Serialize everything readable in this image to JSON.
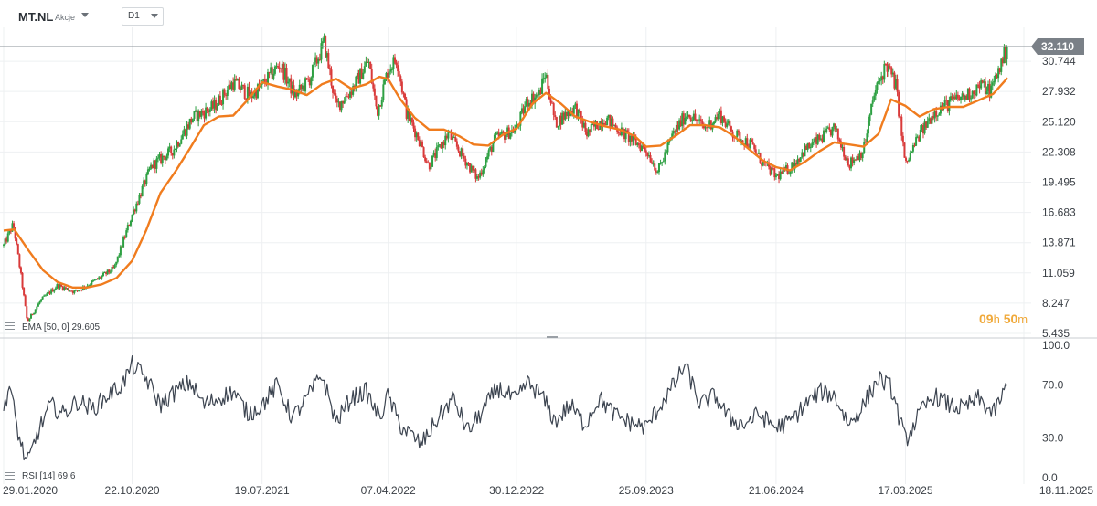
{
  "header": {
    "symbol": "MT.NL",
    "type": "Akcje",
    "timeframe": "D1"
  },
  "countdown": {
    "hours": "09",
    "h_unit": "h",
    "minutes": "50",
    "m_unit": "m"
  },
  "colors": {
    "ema": "#f07c1e",
    "up": "#2ea043",
    "down": "#d93a3a",
    "rsi": "#3c4450",
    "current_price_bg": "#7a8087"
  },
  "chart_data": [
    {
      "type": "candlestick",
      "panel": "price",
      "y_ticks": [
        "32.110",
        "30.744",
        "27.932",
        "25.120",
        "22.308",
        "19.495",
        "16.683",
        "13.871",
        "11.059",
        "8.247",
        "5.435"
      ],
      "ylim": [
        5.435,
        33.3
      ],
      "current_price": "32.110",
      "x_ticks": [
        "29.01.2020",
        "22.10.2020",
        "19.07.2021",
        "07.04.2022",
        "30.12.2022",
        "25.09.2023",
        "21.06.2024",
        "17.03.2025",
        "18.11.2025"
      ],
      "close_path": [
        [
          "2020-01-29",
          13.6
        ],
        [
          "2020-02-18",
          15.6
        ],
        [
          "2020-03-06",
          10.5
        ],
        [
          "2020-03-18",
          6.5
        ],
        [
          "2020-04-15",
          8.5
        ],
        [
          "2020-05-20",
          9.9
        ],
        [
          "2020-06-25",
          9.3
        ],
        [
          "2020-08-05",
          10.3
        ],
        [
          "2020-09-15",
          11.5
        ],
        [
          "2020-10-22",
          16.5
        ],
        [
          "2020-12-01",
          21.0
        ],
        [
          "2021-01-15",
          22.5
        ],
        [
          "2021-02-25",
          25.5
        ],
        [
          "2021-04-10",
          26.5
        ],
        [
          "2021-05-20",
          28.8
        ],
        [
          "2021-06-25",
          27.5
        ],
        [
          "2021-07-19",
          28.5
        ],
        [
          "2021-08-25",
          30.5
        ],
        [
          "2021-09-25",
          27.5
        ],
        [
          "2021-10-25",
          29.0
        ],
        [
          "2021-11-25",
          32.5
        ],
        [
          "2021-12-20",
          26.5
        ],
        [
          "2022-01-20",
          28.0
        ],
        [
          "2022-02-25",
          30.8
        ],
        [
          "2022-03-15",
          26.0
        ],
        [
          "2022-04-07",
          30.0
        ],
        [
          "2022-04-25",
          31.0
        ],
        [
          "2022-05-15",
          26.0
        ],
        [
          "2022-06-10",
          23.5
        ],
        [
          "2022-06-30",
          21.0
        ],
        [
          "2022-08-10",
          24.0
        ],
        [
          "2022-09-15",
          21.5
        ],
        [
          "2022-10-10",
          19.8
        ],
        [
          "2022-11-15",
          23.5
        ],
        [
          "2022-12-30",
          24.5
        ],
        [
          "2023-01-20",
          27.0
        ],
        [
          "2023-02-15",
          27.7
        ],
        [
          "2023-02-28",
          29.7
        ],
        [
          "2023-03-20",
          25.0
        ],
        [
          "2023-04-30",
          26.5
        ],
        [
          "2023-05-25",
          24.0
        ],
        [
          "2023-07-01",
          25.5
        ],
        [
          "2023-08-15",
          23.8
        ],
        [
          "2023-09-25",
          22.5
        ],
        [
          "2023-10-20",
          20.5
        ],
        [
          "2023-11-20",
          24.0
        ],
        [
          "2023-12-20",
          26.0
        ],
        [
          "2024-01-25",
          24.5
        ],
        [
          "2024-02-25",
          25.8
        ],
        [
          "2024-03-25",
          24.0
        ],
        [
          "2024-04-30",
          23.0
        ],
        [
          "2024-05-20",
          21.5
        ],
        [
          "2024-06-21",
          20.0
        ],
        [
          "2024-07-20",
          20.8
        ],
        [
          "2024-08-20",
          22.5
        ],
        [
          "2024-09-20",
          23.5
        ],
        [
          "2024-10-20",
          24.5
        ],
        [
          "2024-11-20",
          21.2
        ],
        [
          "2024-12-20",
          22.5
        ],
        [
          "2025-01-10",
          27.5
        ],
        [
          "2025-02-05",
          30.5
        ],
        [
          "2025-02-25",
          28.5
        ],
        [
          "2025-03-17",
          21.0
        ],
        [
          "2025-04-10",
          23.5
        ],
        [
          "2025-05-15",
          26.0
        ],
        [
          "2025-06-20",
          27.0
        ],
        [
          "2025-07-20",
          27.5
        ],
        [
          "2025-08-20",
          28.5
        ],
        [
          "2025-09-10",
          28.0
        ],
        [
          "2025-10-15",
          32.1
        ]
      ],
      "ema_path": [
        [
          "2020-01-29",
          15.0
        ],
        [
          "2020-02-20",
          15.1
        ],
        [
          "2020-03-20",
          13.2
        ],
        [
          "2020-04-20",
          11.3
        ],
        [
          "2020-05-20",
          10.2
        ],
        [
          "2020-06-20",
          9.7
        ],
        [
          "2020-07-20",
          9.7
        ],
        [
          "2020-08-20",
          10.0
        ],
        [
          "2020-09-20",
          10.6
        ],
        [
          "2020-10-22",
          12.2
        ],
        [
          "2020-11-20",
          15.0
        ],
        [
          "2020-12-20",
          18.5
        ],
        [
          "2021-01-20",
          20.5
        ],
        [
          "2021-02-20",
          22.7
        ],
        [
          "2021-03-20",
          24.8
        ],
        [
          "2021-04-20",
          25.6
        ],
        [
          "2021-05-20",
          25.7
        ],
        [
          "2021-06-20",
          27.2
        ],
        [
          "2021-07-19",
          28.8
        ],
        [
          "2021-08-20",
          28.4
        ],
        [
          "2021-09-20",
          28.1
        ],
        [
          "2021-10-20",
          27.6
        ],
        [
          "2021-11-20",
          28.6
        ],
        [
          "2021-12-20",
          29.1
        ],
        [
          "2022-01-20",
          28.2
        ],
        [
          "2022-02-20",
          28.6
        ],
        [
          "2022-03-20",
          29.3
        ],
        [
          "2022-04-07",
          29.1
        ],
        [
          "2022-05-01",
          27.3
        ],
        [
          "2022-06-01",
          25.5
        ],
        [
          "2022-07-01",
          24.4
        ],
        [
          "2022-08-01",
          24.4
        ],
        [
          "2022-09-01",
          23.8
        ],
        [
          "2022-10-01",
          23.0
        ],
        [
          "2022-11-01",
          22.9
        ],
        [
          "2022-12-01",
          23.9
        ],
        [
          "2022-12-30",
          24.5
        ],
        [
          "2023-02-01",
          26.8
        ],
        [
          "2023-03-01",
          27.8
        ],
        [
          "2023-04-01",
          26.8
        ],
        [
          "2023-05-01",
          25.6
        ],
        [
          "2023-06-01",
          25.1
        ],
        [
          "2023-07-01",
          24.7
        ],
        [
          "2023-08-01",
          24.4
        ],
        [
          "2023-09-01",
          23.8
        ],
        [
          "2023-09-25",
          22.8
        ],
        [
          "2023-10-25",
          22.9
        ],
        [
          "2023-11-25",
          23.8
        ],
        [
          "2023-12-25",
          24.8
        ],
        [
          "2024-01-25",
          24.8
        ],
        [
          "2024-02-25",
          24.6
        ],
        [
          "2024-03-25",
          23.8
        ],
        [
          "2024-04-25",
          22.6
        ],
        [
          "2024-05-25",
          21.5
        ],
        [
          "2024-06-21",
          20.9
        ],
        [
          "2024-07-20",
          20.6
        ],
        [
          "2024-08-20",
          21.4
        ],
        [
          "2024-09-20",
          22.4
        ],
        [
          "2024-10-20",
          23.2
        ],
        [
          "2024-11-20",
          23.0
        ],
        [
          "2024-12-20",
          22.8
        ],
        [
          "2025-01-20",
          24.0
        ],
        [
          "2025-02-15",
          27.2
        ],
        [
          "2025-03-17",
          26.6
        ],
        [
          "2025-04-15",
          25.6
        ],
        [
          "2025-05-15",
          26.3
        ],
        [
          "2025-06-15",
          26.5
        ],
        [
          "2025-07-15",
          26.5
        ],
        [
          "2025-08-15",
          27.1
        ],
        [
          "2025-09-15",
          27.7
        ],
        [
          "2025-10-15",
          29.2
        ]
      ],
      "indicator_legend": {
        "label": "EMA [50, 0]",
        "value": "29.605"
      }
    },
    {
      "type": "line",
      "panel": "rsi",
      "y_ticks": [
        "100.0",
        "70.0",
        "30.0",
        "0.0"
      ],
      "ylim": [
        0,
        100
      ],
      "indicator_legend": {
        "label": "RSI [14]",
        "value": "69.6"
      },
      "series_path": [
        [
          "2020-01-29",
          52
        ],
        [
          "2020-02-10",
          70
        ],
        [
          "2020-03-01",
          30
        ],
        [
          "2020-03-18",
          10
        ],
        [
          "2020-04-10",
          35
        ],
        [
          "2020-05-05",
          55
        ],
        [
          "2020-06-01",
          48
        ],
        [
          "2020-07-01",
          58
        ],
        [
          "2020-08-01",
          52
        ],
        [
          "2020-09-01",
          62
        ],
        [
          "2020-10-01",
          70
        ],
        [
          "2020-10-22",
          85
        ],
        [
          "2020-11-20",
          75
        ],
        [
          "2020-12-20",
          55
        ],
        [
          "2021-01-20",
          65
        ],
        [
          "2021-02-20",
          72
        ],
        [
          "2021-03-20",
          55
        ],
        [
          "2021-04-20",
          60
        ],
        [
          "2021-05-20",
          65
        ],
        [
          "2021-06-20",
          48
        ],
        [
          "2021-07-19",
          55
        ],
        [
          "2021-08-20",
          70
        ],
        [
          "2021-09-20",
          45
        ],
        [
          "2021-10-20",
          60
        ],
        [
          "2021-11-20",
          78
        ],
        [
          "2021-12-20",
          42
        ],
        [
          "2022-01-20",
          60
        ],
        [
          "2022-02-20",
          65
        ],
        [
          "2022-03-20",
          45
        ],
        [
          "2022-04-07",
          62
        ],
        [
          "2022-05-01",
          40
        ],
        [
          "2022-06-15",
          25
        ],
        [
          "2022-07-20",
          45
        ],
        [
          "2022-08-20",
          60
        ],
        [
          "2022-09-20",
          35
        ],
        [
          "2022-10-20",
          50
        ],
        [
          "2022-11-20",
          68
        ],
        [
          "2022-12-30",
          58
        ],
        [
          "2023-01-20",
          72
        ],
        [
          "2023-02-20",
          62
        ],
        [
          "2023-03-20",
          42
        ],
        [
          "2023-04-20",
          55
        ],
        [
          "2023-05-20",
          40
        ],
        [
          "2023-06-20",
          60
        ],
        [
          "2023-07-20",
          48
        ],
        [
          "2023-08-20",
          42
        ],
        [
          "2023-09-25",
          38
        ],
        [
          "2023-10-25",
          55
        ],
        [
          "2023-11-25",
          72
        ],
        [
          "2023-12-15",
          85
        ],
        [
          "2024-01-15",
          55
        ],
        [
          "2024-02-15",
          62
        ],
        [
          "2024-03-15",
          45
        ],
        [
          "2024-04-15",
          40
        ],
        [
          "2024-05-15",
          48
        ],
        [
          "2024-06-21",
          38
        ],
        [
          "2024-07-20",
          42
        ],
        [
          "2024-08-20",
          55
        ],
        [
          "2024-09-20",
          65
        ],
        [
          "2024-10-20",
          62
        ],
        [
          "2024-11-20",
          40
        ],
        [
          "2024-12-20",
          55
        ],
        [
          "2025-01-20",
          75
        ],
        [
          "2025-02-15",
          68
        ],
        [
          "2025-03-17",
          28
        ],
        [
          "2025-04-15",
          48
        ],
        [
          "2025-05-15",
          62
        ],
        [
          "2025-06-15",
          55
        ],
        [
          "2025-07-15",
          52
        ],
        [
          "2025-08-15",
          60
        ],
        [
          "2025-09-15",
          48
        ],
        [
          "2025-10-15",
          69.6
        ]
      ]
    }
  ]
}
